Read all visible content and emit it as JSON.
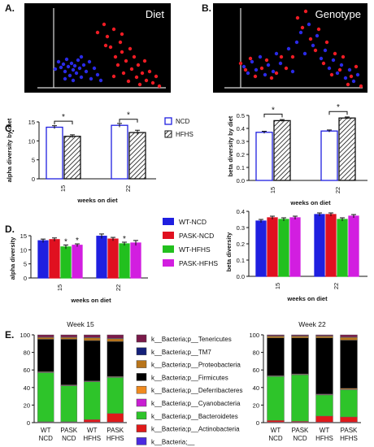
{
  "panels": {
    "A": {
      "letter": "A.",
      "title": "Diet"
    },
    "B": {
      "letter": "B.",
      "title": "Genotype"
    },
    "C": {
      "letter": "C."
    },
    "D": {
      "letter": "D."
    },
    "E": {
      "letter": "E."
    }
  },
  "colors": {
    "blue": "#1f1fe0",
    "red": "#e01020",
    "green": "#22c01e",
    "magenta": "#d21ee0",
    "pca_bg": "#000000",
    "pca_blue": "#2a2ae6",
    "pca_red": "#ee1c24"
  },
  "pca_points": {
    "diet": {
      "blue": [
        [
          68,
          85
        ],
        [
          72,
          76
        ],
        [
          75,
          83
        ],
        [
          78,
          79
        ],
        [
          80,
          88
        ],
        [
          82,
          73
        ],
        [
          84,
          82
        ],
        [
          86,
          93
        ],
        [
          88,
          78
        ],
        [
          90,
          86
        ],
        [
          92,
          81
        ],
        [
          94,
          90
        ],
        [
          96,
          74
        ],
        [
          98,
          84
        ],
        [
          100,
          95
        ],
        [
          103,
          80
        ],
        [
          106,
          88
        ],
        [
          110,
          76
        ],
        [
          112,
          97
        ],
        [
          116,
          84
        ],
        [
          120,
          92
        ],
        [
          124,
          99
        ],
        [
          80,
          97
        ],
        [
          90,
          99
        ],
        [
          100,
          70
        ]
      ],
      "red": [
        [
          120,
          40
        ],
        [
          128,
          30
        ],
        [
          132,
          45
        ],
        [
          136,
          58
        ],
        [
          140,
          36
        ],
        [
          142,
          70
        ],
        [
          145,
          80
        ],
        [
          148,
          52
        ],
        [
          150,
          64
        ],
        [
          152,
          90
        ],
        [
          155,
          75
        ],
        [
          158,
          100
        ],
        [
          160,
          60
        ],
        [
          162,
          85
        ],
        [
          165,
          70
        ],
        [
          168,
          95
        ],
        [
          170,
          80
        ],
        [
          172,
          104
        ],
        [
          175,
          90
        ],
        [
          178,
          75
        ],
        [
          180,
          99
        ],
        [
          184,
          88
        ],
        [
          188,
          102
        ],
        [
          192,
          94
        ],
        [
          196,
          106
        ],
        [
          140,
          94
        ],
        [
          130,
          56
        ],
        [
          150,
          42
        ]
      ]
    },
    "genotype": {
      "blue": [
        [
          300,
          82
        ],
        [
          305,
          90
        ],
        [
          310,
          76
        ],
        [
          315,
          86
        ],
        [
          320,
          70
        ],
        [
          326,
          92
        ],
        [
          330,
          80
        ],
        [
          336,
          88
        ],
        [
          340,
          66
        ],
        [
          345,
          78
        ],
        [
          355,
          60
        ],
        [
          360,
          88
        ],
        [
          365,
          52
        ],
        [
          370,
          40
        ],
        [
          375,
          66
        ],
        [
          380,
          30
        ],
        [
          385,
          56
        ],
        [
          390,
          44
        ],
        [
          395,
          72
        ],
        [
          400,
          62
        ],
        [
          405,
          84
        ],
        [
          410,
          74
        ],
        [
          415,
          90
        ],
        [
          420,
          80
        ],
        [
          425,
          96
        ],
        [
          430,
          86
        ],
        [
          435,
          100
        ],
        [
          440,
          92
        ]
      ],
      "red": [
        [
          296,
          78
        ],
        [
          302,
          86
        ],
        [
          308,
          72
        ],
        [
          314,
          94
        ],
        [
          322,
          84
        ],
        [
          328,
          74
        ],
        [
          334,
          96
        ],
        [
          340,
          90
        ],
        [
          346,
          70
        ],
        [
          352,
          84
        ],
        [
          360,
          70
        ],
        [
          366,
          22
        ],
        [
          372,
          34
        ],
        [
          376,
          14
        ],
        [
          382,
          48
        ],
        [
          388,
          62
        ],
        [
          392,
          36
        ],
        [
          398,
          78
        ],
        [
          402,
          52
        ],
        [
          408,
          92
        ],
        [
          412,
          66
        ],
        [
          418,
          86
        ],
        [
          422,
          70
        ],
        [
          428,
          104
        ],
        [
          432,
          94
        ],
        [
          438,
          82
        ],
        [
          444,
          106
        ]
      ]
    }
  },
  "chart_data": [
    {
      "panel": "C-left",
      "type": "bar",
      "xlabel": "weeks on diet",
      "ylabel": "alpha diversity by diet",
      "categories": [
        "15",
        "22"
      ],
      "ylim": [
        0,
        15
      ],
      "yticks": [
        0,
        5,
        10,
        15
      ],
      "series": [
        {
          "name": "NCD",
          "values": [
            13.6,
            14.1
          ],
          "errors": [
            0.4,
            0.5
          ]
        },
        {
          "name": "HFHS",
          "values": [
            11.2,
            12.2
          ],
          "errors": [
            0.4,
            0.6
          ]
        }
      ],
      "significance": [
        "*",
        "*"
      ]
    },
    {
      "panel": "C-right",
      "type": "bar",
      "xlabel": "weeks on diet",
      "ylabel": "beta diversity by diet",
      "categories": [
        "15",
        "22"
      ],
      "ylim": [
        0,
        0.5
      ],
      "yticks": [
        0.0,
        0.1,
        0.2,
        0.3,
        0.4,
        0.5
      ],
      "series": [
        {
          "name": "NCD",
          "values": [
            0.37,
            0.38
          ],
          "errors": [
            0.008,
            0.008
          ]
        },
        {
          "name": "HFHS",
          "values": [
            0.46,
            0.48
          ],
          "errors": [
            0.008,
            0.008
          ]
        }
      ],
      "significance": [
        "*",
        "*"
      ]
    },
    {
      "panel": "D-left",
      "type": "bar",
      "xlabel": "weeks on diet",
      "ylabel": "alpha diversity",
      "categories": [
        "15",
        "22"
      ],
      "ylim": [
        0,
        15
      ],
      "yticks": [
        0,
        5,
        10,
        15
      ],
      "series": [
        {
          "name": "WT-NCD",
          "values": [
            13.2,
            14.8
          ],
          "errors": [
            0.6,
            0.8
          ]
        },
        {
          "name": "PASK-NCD",
          "values": [
            13.6,
            13.8
          ],
          "errors": [
            0.6,
            0.6
          ]
        },
        {
          "name": "WT-HFHS",
          "values": [
            11.0,
            12.1
          ],
          "errors": [
            0.7,
            0.6
          ]
        },
        {
          "name": "PASK-HFHS",
          "values": [
            11.6,
            12.4
          ],
          "errors": [
            0.5,
            0.9
          ]
        }
      ],
      "significance_marks": [
        {
          "category": "15",
          "series": "WT-HFHS",
          "text": "*"
        },
        {
          "category": "15",
          "series": "PASK-HFHS",
          "text": "*"
        },
        {
          "category": "22",
          "series": "WT-HFHS",
          "text": "*"
        }
      ]
    },
    {
      "panel": "D-right",
      "type": "bar",
      "xlabel": "weeks on diet",
      "ylabel": "beta diversity",
      "categories": [
        "15",
        "22"
      ],
      "ylim": [
        0,
        0.4
      ],
      "yticks": [
        0.0,
        0.1,
        0.2,
        0.3,
        0.4
      ],
      "series": [
        {
          "name": "WT-NCD",
          "values": [
            0.34,
            0.38
          ],
          "errors": [
            0.01,
            0.01
          ]
        },
        {
          "name": "PASK-NCD",
          "values": [
            0.36,
            0.38
          ],
          "errors": [
            0.01,
            0.01
          ]
        },
        {
          "name": "WT-HFHS",
          "values": [
            0.35,
            0.35
          ],
          "errors": [
            0.01,
            0.01
          ]
        },
        {
          "name": "PASK-HFHS",
          "values": [
            0.36,
            0.37
          ],
          "errors": [
            0.01,
            0.01
          ]
        }
      ]
    },
    {
      "panel": "E-left",
      "type": "bar",
      "stacked": true,
      "title": "Week 15",
      "categories": [
        "WT\nNCD",
        "PASK\nNCD",
        "WT\nHFHS",
        "PASK\nHFHS"
      ],
      "ylim": [
        0,
        100
      ],
      "yticks": [
        0,
        20,
        40,
        60,
        80,
        100
      ],
      "stacks": {
        "Bacteria;__": [
          0.5,
          0.5,
          0.5,
          0.5
        ],
        "Actinobacteria": [
          0.5,
          0.5,
          3,
          10
        ],
        "Bacteroidetes": [
          56,
          41,
          43,
          41
        ],
        "Cyanobacteria": [
          0.5,
          0.5,
          0.5,
          0.5
        ],
        "Deferribacteres": [
          0.5,
          0.5,
          0.5,
          0.5
        ],
        "Firmicutes": [
          37,
          52,
          46,
          40
        ],
        "Proteobacteria": [
          2,
          2,
          3,
          3
        ],
        "TM7": [
          0.5,
          0.5,
          0.5,
          0.5
        ],
        "Tenericutes": [
          2.5,
          2.5,
          3,
          4
        ]
      }
    },
    {
      "panel": "E-right",
      "type": "bar",
      "stacked": true,
      "title": "Week 22",
      "categories": [
        "WT\nNCD",
        "PASK\nNCD",
        "WT\nHFHS",
        "PASK\nHFHS"
      ],
      "ylim": [
        0,
        100
      ],
      "yticks": [
        0,
        20,
        40,
        60,
        80,
        100
      ],
      "stacks": {
        "Bacteria;__": [
          0.5,
          0.5,
          0.5,
          0.5
        ],
        "Actinobacteria": [
          2,
          1,
          7,
          6
        ],
        "Bacteroidetes": [
          50,
          53,
          24,
          31
        ],
        "Cyanobacteria": [
          0.5,
          0.5,
          0.5,
          0.5
        ],
        "Deferribacteres": [
          0.5,
          0.5,
          0.5,
          1
        ],
        "Firmicutes": [
          43,
          41,
          64,
          55
        ],
        "Proteobacteria": [
          2,
          2,
          2,
          3
        ],
        "TM7": [
          0.5,
          0.5,
          0.5,
          0.5
        ],
        "Tenericutes": [
          1,
          1,
          1,
          2.5
        ]
      }
    }
  ],
  "taxa_legend": [
    {
      "key": "Tenericutes",
      "label": "k__Bacteria;p__Tenericutes",
      "color": "#7a1a4a"
    },
    {
      "key": "TM7",
      "label": "k__Bacteria;p__TM7",
      "color": "#14207a"
    },
    {
      "key": "Proteobacteria",
      "label": "k__Bacteria;p__Proteobacteria",
      "color": "#b8741a"
    },
    {
      "key": "Firmicutes",
      "label": "k__Bacteria;p__Firmicutes",
      "color": "#000000"
    },
    {
      "key": "Deferribacteres",
      "label": "k__Bacteria;p__Deferribacteres",
      "color": "#f08a1e"
    },
    {
      "key": "Cyanobacteria",
      "label": "k__Bacteria;p__Cyanobacteria",
      "color": "#c81ed2"
    },
    {
      "key": "Bacteroidetes",
      "label": "k__Bacteria;p__Bacteroidetes",
      "color": "#2ec42a"
    },
    {
      "key": "Actinobacteria",
      "label": "k__Bacteria;p__Actinobacteria",
      "color": "#e01a1a"
    },
    {
      "key": "Bacteria;__",
      "label": "k__Bacteria;__",
      "color": "#4a2ae0"
    }
  ]
}
